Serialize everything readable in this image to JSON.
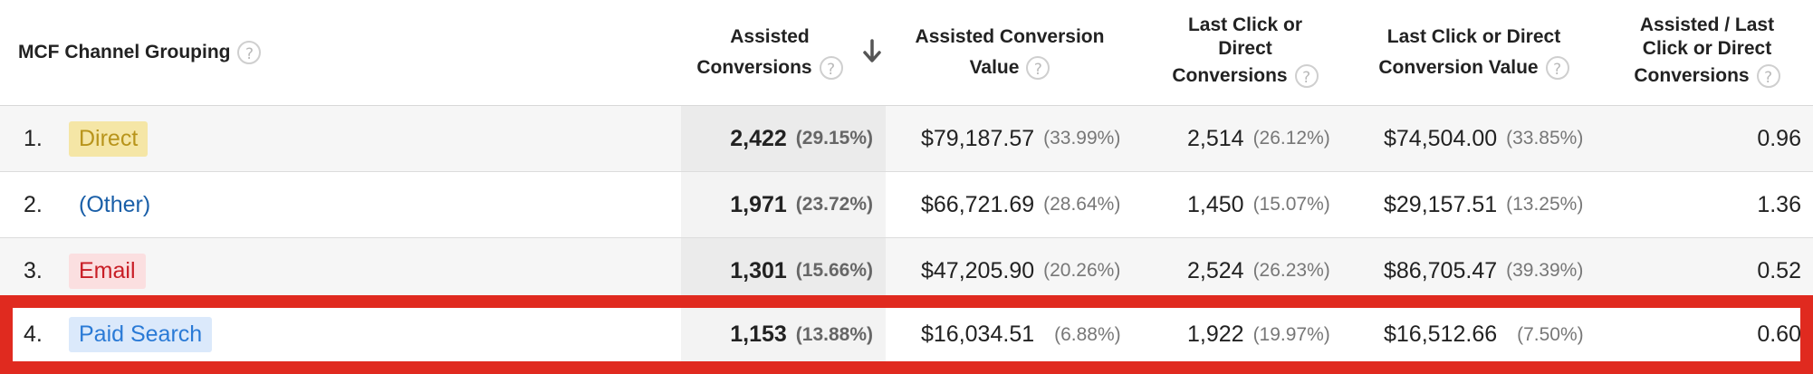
{
  "header": {
    "col_channel": "MCF Channel Grouping",
    "col_assisted_1": "Assisted",
    "col_assisted_2": "Conversions",
    "col_acv_1": "Assisted Conversion",
    "col_acv_2": "Value",
    "col_lc_1": "Last Click or",
    "col_lc_2": "Direct",
    "col_lc_3": "Conversions",
    "col_lcv_1": "Last Click or Direct",
    "col_lcv_2": "Conversion Value",
    "col_ratio_1": "Assisted / Last",
    "col_ratio_2": "Click or Direct",
    "col_ratio_3": "Conversions",
    "help": "?"
  },
  "rows": [
    {
      "num": "1.",
      "channel": "Direct",
      "channel_color": "#b8941b",
      "channel_bg": "#f5e6a6",
      "assisted": "2,422",
      "assisted_pct": "(29.15%)",
      "acv": "$79,187.57",
      "acv_pct": "(33.99%)",
      "lc": "2,514",
      "lc_pct": "(26.12%)",
      "lcv": "$74,504.00",
      "lcv_pct": "(33.85%)",
      "ratio": "0.96"
    },
    {
      "num": "2.",
      "channel": "(Other)",
      "channel_color": "#1a5fa8",
      "channel_bg": "transparent",
      "assisted": "1,971",
      "assisted_pct": "(23.72%)",
      "acv": "$66,721.69",
      "acv_pct": "(28.64%)",
      "lc": "1,450",
      "lc_pct": "(15.07%)",
      "lcv": "$29,157.51",
      "lcv_pct": "(13.25%)",
      "ratio": "1.36"
    },
    {
      "num": "3.",
      "channel": "Email",
      "channel_color": "#c81d25",
      "channel_bg": "#fbdfe0",
      "assisted": "1,301",
      "assisted_pct": "(15.66%)",
      "acv": "$47,205.90",
      "acv_pct": "(20.26%)",
      "lc": "2,524",
      "lc_pct": "(26.23%)",
      "lcv": "$86,705.47",
      "lcv_pct": "(39.39%)",
      "ratio": "0.52"
    },
    {
      "num": "4.",
      "channel": "Paid Search",
      "channel_color": "#2a7ad6",
      "channel_bg": "#dbe9fb",
      "assisted": "1,153",
      "assisted_pct": "(13.88%)",
      "acv": "$16,034.51",
      "acv_pct": "(6.88%)",
      "lc": "1,922",
      "lc_pct": "(19.97%)",
      "lcv": "$16,512.66",
      "lcv_pct": "(7.50%)",
      "ratio": "0.60"
    }
  ],
  "highlight_color": "#e02a1f"
}
